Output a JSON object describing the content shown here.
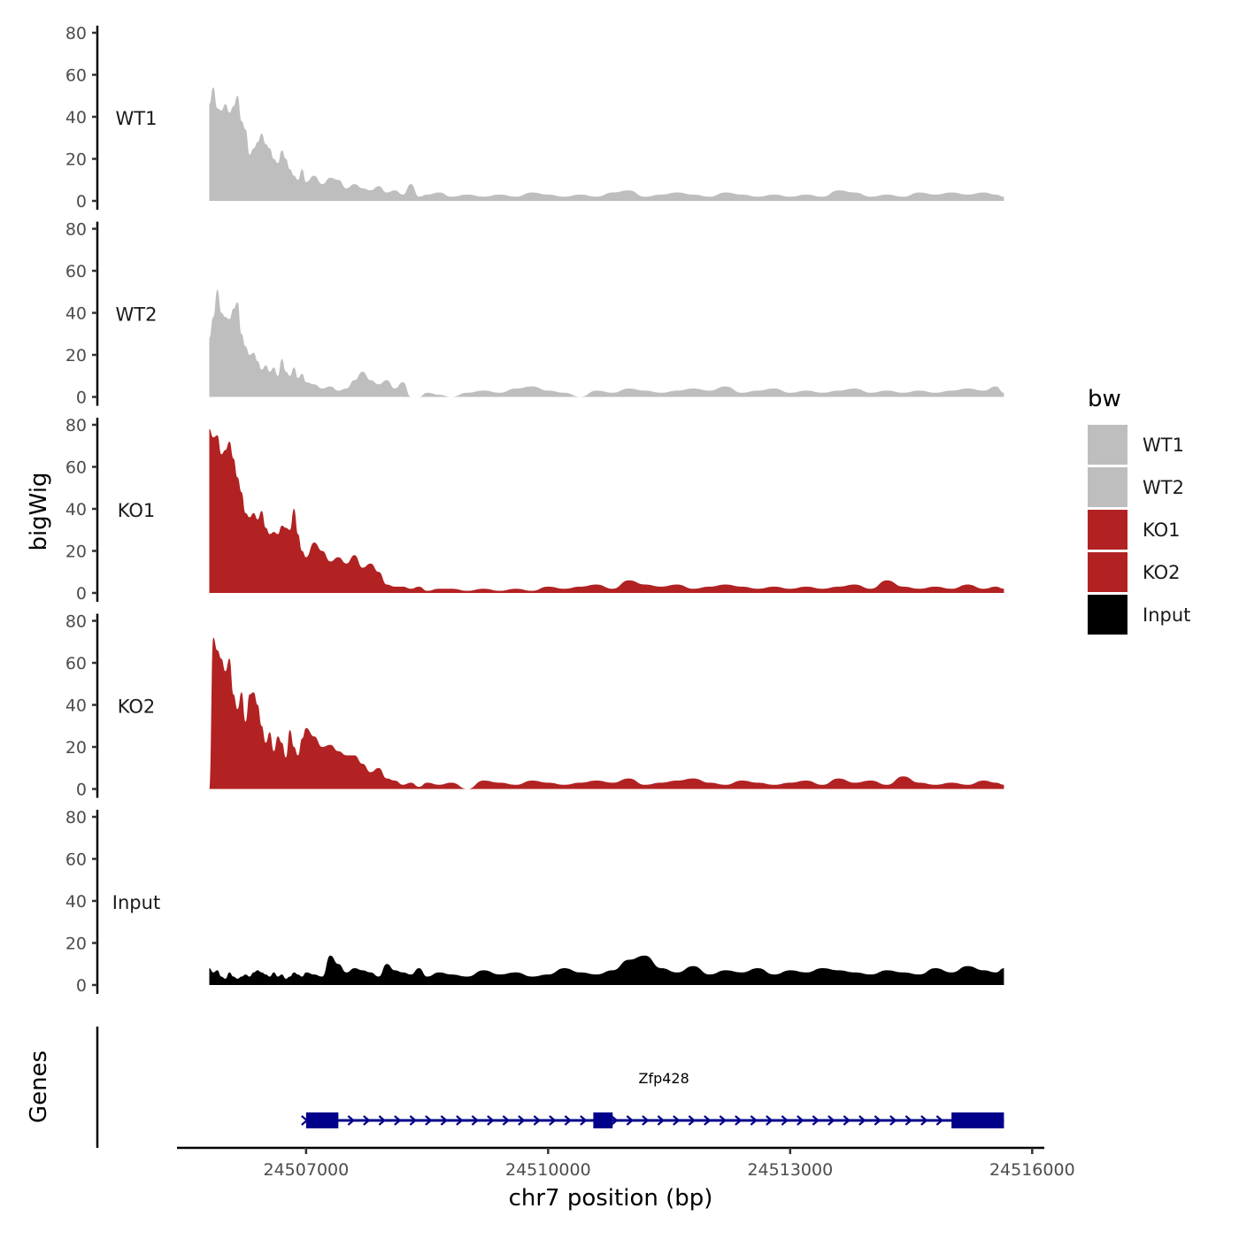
{
  "chart_data": {
    "type": "area",
    "chromosome": "chr7",
    "xlabel": "chr7 position (bp)",
    "ylabel": "bigWig",
    "gene_panel_label": "Genes",
    "xlim": [
      24505400,
      24516150
    ],
    "xticks": [
      24507000,
      24510000,
      24513000,
      24516000
    ],
    "xtick_labels": [
      "24507000",
      "24510000",
      "24513000",
      "24516000"
    ],
    "ylim": [
      0,
      80
    ],
    "yticks": [
      0,
      20,
      40,
      60,
      80
    ],
    "ytick_labels": [
      "0",
      "20",
      "40",
      "60",
      "80"
    ],
    "region": [
      24505800,
      24515650
    ],
    "legend": {
      "title": "bw",
      "position": "right",
      "entries": [
        {
          "label": "WT1",
          "color": "#BEBEBE"
        },
        {
          "label": "WT2",
          "color": "#BEBEBE"
        },
        {
          "label": "KO1",
          "color": "#B22222"
        },
        {
          "label": "KO2",
          "color": "#B22222"
        },
        {
          "label": "Input",
          "color": "#000000"
        }
      ]
    },
    "series": [
      {
        "name": "WT1",
        "color": "#BEBEBE",
        "x": [
          24505800,
          24505850,
          24505900,
          24505950,
          24506000,
          24506050,
          24506100,
          24506150,
          24506200,
          24506250,
          24506300,
          24506350,
          24506400,
          24506450,
          24506500,
          24506550,
          24506600,
          24506650,
          24506700,
          24506750,
          24506800,
          24506850,
          24506900,
          24506950,
          24507000,
          24507100,
          24507200,
          24507300,
          24507400,
          24507500,
          24507600,
          24507700,
          24507800,
          24507900,
          24508000,
          24508100,
          24508200,
          24508300,
          24508400,
          24508500,
          24508650,
          24508800,
          24509000,
          24509200,
          24509400,
          24509600,
          24509800,
          24510000,
          24510200,
          24510400,
          24510600,
          24510800,
          24511000,
          24511200,
          24511400,
          24511600,
          24511800,
          24512000,
          24512200,
          24512400,
          24512600,
          24512800,
          24513000,
          24513200,
          24513400,
          24513600,
          24513800,
          24514000,
          24514200,
          24514400,
          24514600,
          24514800,
          24515000,
          24515200,
          24515400,
          24515550,
          24515650
        ],
        "values": [
          46,
          54,
          44,
          43,
          46,
          42,
          45,
          50,
          38,
          34,
          22,
          25,
          28,
          32,
          27,
          25,
          20,
          18,
          24,
          20,
          15,
          12,
          10,
          15,
          9,
          12,
          8,
          11,
          10,
          6,
          8,
          6,
          5,
          7,
          4,
          5,
          3,
          8,
          2,
          3,
          4,
          2,
          3,
          2,
          3,
          2,
          4,
          3,
          2,
          3,
          2,
          4,
          5,
          2,
          3,
          4,
          3,
          2,
          4,
          3,
          2,
          3,
          2,
          3,
          2,
          5,
          4,
          2,
          3,
          2,
          4,
          3,
          4,
          3,
          4,
          3,
          2
        ]
      },
      {
        "name": "WT2",
        "color": "#BEBEBE",
        "x": [
          24505800,
          24505850,
          24505900,
          24505950,
          24506000,
          24506050,
          24506100,
          24506150,
          24506200,
          24506250,
          24506300,
          24506350,
          24506400,
          24506450,
          24506500,
          24506550,
          24506600,
          24506650,
          24506700,
          24506750,
          24506800,
          24506850,
          24506900,
          24506950,
          24507000,
          24507100,
          24507200,
          24507300,
          24507400,
          24507500,
          24507600,
          24507700,
          24507800,
          24507900,
          24508000,
          24508100,
          24508200,
          24508300,
          24508400,
          24508500,
          24508650,
          24508800,
          24509000,
          24509200,
          24509400,
          24509600,
          24509800,
          24510000,
          24510200,
          24510400,
          24510600,
          24510800,
          24511000,
          24511200,
          24511400,
          24511600,
          24511800,
          24512000,
          24512200,
          24512400,
          24512600,
          24512800,
          24513000,
          24513200,
          24513400,
          24513600,
          24513800,
          24514000,
          24514200,
          24514400,
          24514600,
          24514800,
          24515000,
          24515200,
          24515400,
          24515550,
          24515650
        ],
        "values": [
          28,
          38,
          51,
          40,
          38,
          37,
          42,
          45,
          30,
          24,
          20,
          21,
          17,
          13,
          15,
          12,
          14,
          10,
          18,
          12,
          10,
          14,
          9,
          11,
          7,
          6,
          4,
          5,
          3,
          4,
          8,
          12,
          8,
          6,
          8,
          4,
          7,
          0,
          0,
          2,
          1,
          0,
          2,
          3,
          2,
          4,
          5,
          3,
          2,
          0,
          3,
          2,
          4,
          3,
          2,
          3,
          4,
          3,
          5,
          2,
          3,
          4,
          2,
          3,
          2,
          3,
          4,
          2,
          3,
          2,
          3,
          2,
          3,
          4,
          3,
          5,
          2
        ]
      },
      {
        "name": "KO1",
        "color": "#B22222",
        "x": [
          24505800,
          24505850,
          24505900,
          24505950,
          24506000,
          24506050,
          24506100,
          24506150,
          24506200,
          24506250,
          24506300,
          24506350,
          24506400,
          24506450,
          24506500,
          24506550,
          24506600,
          24506650,
          24506700,
          24506750,
          24506800,
          24506850,
          24506900,
          24506950,
          24507000,
          24507100,
          24507200,
          24507300,
          24507400,
          24507500,
          24507600,
          24507700,
          24507800,
          24507900,
          24508000,
          24508100,
          24508200,
          24508300,
          24508400,
          24508500,
          24508650,
          24508800,
          24509000,
          24509200,
          24509400,
          24509600,
          24509800,
          24510000,
          24510200,
          24510400,
          24510600,
          24510800,
          24511000,
          24511200,
          24511400,
          24511600,
          24511800,
          24512000,
          24512200,
          24512400,
          24512600,
          24512800,
          24513000,
          24513200,
          24513400,
          24513600,
          24513800,
          24514000,
          24514200,
          24514400,
          24514600,
          24514800,
          24515000,
          24515200,
          24515400,
          24515550,
          24515650
        ],
        "values": [
          78,
          74,
          75,
          66,
          68,
          72,
          64,
          55,
          48,
          38,
          36,
          38,
          35,
          39,
          31,
          28,
          29,
          28,
          32,
          31,
          30,
          40,
          28,
          20,
          17,
          24,
          20,
          15,
          17,
          14,
          18,
          12,
          14,
          10,
          4,
          3,
          3,
          2,
          3,
          1,
          2,
          2,
          1,
          2,
          1,
          2,
          1,
          3,
          2,
          3,
          4,
          2,
          6,
          4,
          3,
          4,
          2,
          3,
          4,
          3,
          2,
          3,
          2,
          3,
          2,
          3,
          4,
          2,
          6,
          3,
          2,
          3,
          2,
          4,
          2,
          3,
          2
        ]
      },
      {
        "name": "KO2",
        "color": "#B22222",
        "x": [
          24505800,
          24505850,
          24505900,
          24505950,
          24506000,
          24506050,
          24506100,
          24506150,
          24506200,
          24506250,
          24506300,
          24506350,
          24506400,
          24506450,
          24506500,
          24506550,
          24506600,
          24506650,
          24506700,
          24506750,
          24506800,
          24506850,
          24506900,
          24506950,
          24507000,
          24507100,
          24507200,
          24507300,
          24507400,
          24507500,
          24507600,
          24507700,
          24507800,
          24507900,
          24508000,
          24508100,
          24508200,
          24508300,
          24508400,
          24508500,
          24508650,
          24508800,
          24509000,
          24509200,
          24509400,
          24509600,
          24509800,
          24510000,
          24510200,
          24510400,
          24510600,
          24510800,
          24511000,
          24511200,
          24511400,
          24511600,
          24511800,
          24512000,
          24512200,
          24512400,
          24512600,
          24512800,
          24513000,
          24513200,
          24513400,
          24513600,
          24513800,
          24514000,
          24514200,
          24514400,
          24514600,
          24514800,
          24515000,
          24515200,
          24515400,
          24515550,
          24515650
        ],
        "values": [
          0,
          72,
          66,
          62,
          56,
          62,
          45,
          38,
          46,
          32,
          45,
          46,
          40,
          30,
          22,
          27,
          18,
          25,
          22,
          15,
          28,
          20,
          16,
          24,
          29,
          25,
          20,
          21,
          18,
          16,
          16,
          12,
          8,
          10,
          5,
          4,
          2,
          3,
          1,
          3,
          2,
          3,
          0,
          4,
          3,
          2,
          4,
          3,
          2,
          3,
          4,
          3,
          5,
          2,
          3,
          4,
          5,
          3,
          2,
          4,
          3,
          2,
          3,
          4,
          2,
          5,
          3,
          4,
          2,
          6,
          3,
          2,
          3,
          2,
          4,
          3,
          2
        ]
      },
      {
        "name": "Input",
        "color": "#000000",
        "x": [
          24505800,
          24505850,
          24505900,
          24505950,
          24506000,
          24506050,
          24506100,
          24506150,
          24506200,
          24506250,
          24506300,
          24506350,
          24506400,
          24506450,
          24506500,
          24506550,
          24506600,
          24506650,
          24506700,
          24506750,
          24506800,
          24506850,
          24506900,
          24506950,
          24507000,
          24507100,
          24507200,
          24507300,
          24507400,
          24507500,
          24507600,
          24507700,
          24507800,
          24507900,
          24508000,
          24508100,
          24508200,
          24508300,
          24508400,
          24508500,
          24508650,
          24508800,
          24509000,
          24509200,
          24509400,
          24509600,
          24509800,
          24510000,
          24510200,
          24510400,
          24510600,
          24510800,
          24511000,
          24511200,
          24511400,
          24511600,
          24511800,
          24512000,
          24512200,
          24512400,
          24512600,
          24512800,
          24513000,
          24513200,
          24513400,
          24513600,
          24513800,
          24514000,
          24514200,
          24514400,
          24514600,
          24514800,
          24515000,
          24515200,
          24515400,
          24515550,
          24515650
        ],
        "values": [
          8,
          6,
          7,
          4,
          3,
          6,
          4,
          3,
          4,
          5,
          4,
          6,
          7,
          6,
          5,
          4,
          6,
          4,
          5,
          3,
          4,
          6,
          5,
          4,
          6,
          5,
          4,
          14,
          10,
          6,
          8,
          7,
          6,
          4,
          10,
          7,
          6,
          5,
          8,
          4,
          6,
          5,
          4,
          7,
          5,
          6,
          4,
          5,
          8,
          6,
          5,
          7,
          12,
          14,
          8,
          6,
          9,
          5,
          7,
          6,
          8,
          5,
          7,
          6,
          8,
          7,
          6,
          5,
          7,
          6,
          5,
          8,
          6,
          9,
          7,
          6,
          8
        ]
      }
    ],
    "genes": [
      {
        "name": "Zfp428",
        "start": 24507000,
        "end": 24515650,
        "strand": "+",
        "color": "#00008B",
        "exons": [
          [
            24507000,
            24507400
          ],
          [
            24510560,
            24510800
          ],
          [
            24515000,
            24515650
          ]
        ]
      }
    ]
  }
}
